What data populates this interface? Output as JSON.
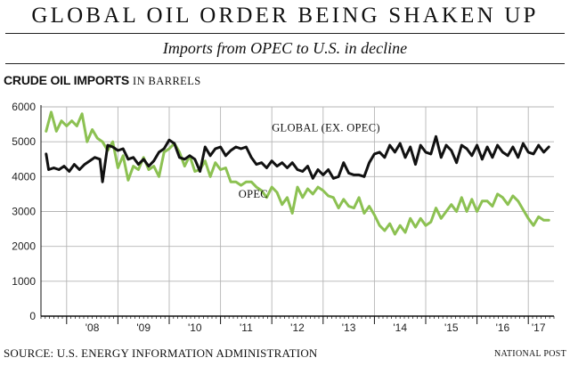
{
  "header": {
    "headline": "GLOBAL OIL ORDER BEING SHAKEN UP",
    "subtitle": "Imports from OPEC to U.S. in decline"
  },
  "chart_label": {
    "main": "CRUDE OIL IMPORTS",
    "unit": "IN BARRELS"
  },
  "footer": {
    "source": "SOURCE: U.S. ENERGY INFORMATION ADMINISTRATION",
    "credit": "NATIONAL POST"
  },
  "colors": {
    "global": "#111111",
    "opec": "#8cc152"
  },
  "chart_data": {
    "type": "line",
    "title": "CRUDE OIL IMPORTS",
    "subtitle": "IN BARRELS",
    "xlabel": "",
    "ylabel": "",
    "ylim": [
      0,
      6000
    ],
    "xlim": [
      2007.5,
      2017.5
    ],
    "yticks": [
      0,
      1000,
      2000,
      3000,
      4000,
      5000,
      6000
    ],
    "xticks": [
      {
        "value": 2008.5,
        "label": "'08"
      },
      {
        "value": 2009.5,
        "label": "'09"
      },
      {
        "value": 2010.5,
        "label": "'10"
      },
      {
        "value": 2011.5,
        "label": "'11"
      },
      {
        "value": 2012.5,
        "label": "'12"
      },
      {
        "value": 2013.5,
        "label": "'13"
      },
      {
        "value": 2014.5,
        "label": "'14"
      },
      {
        "value": 2015.5,
        "label": "'15"
      },
      {
        "value": 2016.5,
        "label": "'16"
      },
      {
        "value": 2017.5,
        "label": "'17"
      }
    ],
    "grid": true,
    "legend": "none",
    "series": [
      {
        "name": "GLOBAL (EX. OPEC)",
        "x": [
          2007.6,
          2007.65,
          2007.75,
          2007.85,
          2007.95,
          2008.05,
          2008.15,
          2008.25,
          2008.35,
          2008.45,
          2008.55,
          2008.65,
          2008.7,
          2008.8,
          2008.9,
          2009.0,
          2009.1,
          2009.2,
          2009.3,
          2009.4,
          2009.5,
          2009.6,
          2009.7,
          2009.8,
          2009.9,
          2010.0,
          2010.1,
          2010.2,
          2010.3,
          2010.4,
          2010.5,
          2010.6,
          2010.7,
          2010.8,
          2010.9,
          2011.0,
          2011.1,
          2011.2,
          2011.3,
          2011.4,
          2011.5,
          2011.6,
          2011.7,
          2011.8,
          2011.9,
          2012.0,
          2012.1,
          2012.2,
          2012.3,
          2012.4,
          2012.5,
          2012.6,
          2012.7,
          2012.8,
          2012.9,
          2013.0,
          2013.1,
          2013.2,
          2013.3,
          2013.4,
          2013.5,
          2013.6,
          2013.7,
          2013.8,
          2013.9,
          2014.0,
          2014.1,
          2014.2,
          2014.3,
          2014.4,
          2014.5,
          2014.6,
          2014.7,
          2014.8,
          2014.9,
          2015.0,
          2015.1,
          2015.2,
          2015.3,
          2015.4,
          2015.5,
          2015.6,
          2015.7,
          2015.8,
          2015.9,
          2016.0,
          2016.1,
          2016.2,
          2016.3,
          2016.4,
          2016.5,
          2016.6,
          2016.7,
          2016.8,
          2016.9,
          2017.0,
          2017.1,
          2017.2,
          2017.3,
          2017.4
        ],
        "values": [
          4650,
          4200,
          4250,
          4200,
          4300,
          4150,
          4350,
          4200,
          4350,
          4450,
          4550,
          4500,
          3850,
          4900,
          4850,
          4750,
          4800,
          4500,
          4550,
          4350,
          4500,
          4300,
          4450,
          4700,
          4800,
          5050,
          4950,
          4550,
          4500,
          4600,
          4500,
          4150,
          4850,
          4600,
          4800,
          4850,
          4600,
          4750,
          4850,
          4800,
          4850,
          4550,
          4350,
          4400,
          4250,
          4450,
          4300,
          4400,
          4250,
          4400,
          4200,
          4150,
          4300,
          3950,
          4200,
          4050,
          4200,
          3950,
          4000,
          4400,
          4100,
          4050,
          4050,
          4000,
          4400,
          4650,
          4700,
          4550,
          4900,
          4700,
          4950,
          4550,
          4850,
          4350,
          4900,
          4700,
          4650,
          5150,
          4550,
          4900,
          4750,
          4400,
          4900,
          4800,
          4600,
          4900,
          4500,
          4850,
          4550,
          4900,
          4700,
          4600,
          4850,
          4550,
          4950,
          4700,
          4650,
          4900,
          4700,
          4850
        ]
      },
      {
        "name": "OPEC",
        "x": [
          2007.6,
          2007.7,
          2007.8,
          2007.9,
          2008.0,
          2008.1,
          2008.2,
          2008.3,
          2008.4,
          2008.5,
          2008.6,
          2008.7,
          2008.8,
          2008.9,
          2009.0,
          2009.1,
          2009.2,
          2009.3,
          2009.4,
          2009.5,
          2009.6,
          2009.7,
          2009.8,
          2009.9,
          2010.0,
          2010.1,
          2010.2,
          2010.3,
          2010.4,
          2010.5,
          2010.6,
          2010.7,
          2010.8,
          2010.9,
          2011.0,
          2011.1,
          2011.2,
          2011.3,
          2011.4,
          2011.5,
          2011.6,
          2011.7,
          2011.8,
          2011.9,
          2012.0,
          2012.1,
          2012.2,
          2012.3,
          2012.4,
          2012.5,
          2012.6,
          2012.7,
          2012.8,
          2012.9,
          2013.0,
          2013.1,
          2013.2,
          2013.3,
          2013.4,
          2013.5,
          2013.6,
          2013.7,
          2013.8,
          2013.9,
          2014.0,
          2014.1,
          2014.2,
          2014.3,
          2014.4,
          2014.5,
          2014.6,
          2014.7,
          2014.8,
          2014.9,
          2015.0,
          2015.1,
          2015.2,
          2015.3,
          2015.4,
          2015.5,
          2015.6,
          2015.7,
          2015.8,
          2015.9,
          2016.0,
          2016.1,
          2016.2,
          2016.3,
          2016.4,
          2016.5,
          2016.6,
          2016.7,
          2016.8,
          2016.9,
          2017.0,
          2017.1,
          2017.2,
          2017.3,
          2017.4
        ],
        "values": [
          5300,
          5850,
          5300,
          5600,
          5450,
          5600,
          5450,
          5800,
          5000,
          5350,
          5100,
          5000,
          4750,
          5000,
          4250,
          4600,
          3900,
          4300,
          4200,
          4550,
          4200,
          4300,
          4000,
          4700,
          4800,
          4950,
          4700,
          4300,
          4600,
          4150,
          4200,
          4450,
          4000,
          4400,
          4200,
          4250,
          3850,
          3850,
          3750,
          3850,
          3850,
          3700,
          3600,
          3400,
          3700,
          3550,
          3200,
          3400,
          2950,
          3700,
          3400,
          3650,
          3500,
          3700,
          3600,
          3450,
          3400,
          3100,
          3350,
          3150,
          3100,
          3400,
          2950,
          3150,
          2900,
          2600,
          2450,
          2650,
          2350,
          2600,
          2400,
          2800,
          2550,
          2800,
          2600,
          2700,
          3100,
          2800,
          3000,
          3200,
          3000,
          3400,
          3000,
          3350,
          3000,
          3300,
          3300,
          3150,
          3500,
          3400,
          3200,
          3450,
          3300,
          3050,
          2800,
          2600,
          2850,
          2750,
          2750
        ]
      }
    ],
    "annotations": [
      {
        "text": "GLOBAL (EX. OPEC)",
        "x": 2012.0,
        "y": 5300
      },
      {
        "text": "OPEC",
        "x": 2011.35,
        "y": 3400
      }
    ]
  }
}
